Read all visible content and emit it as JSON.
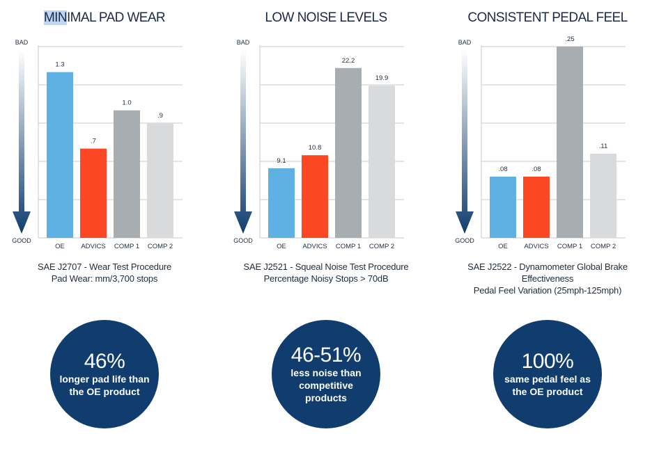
{
  "colors": {
    "oe": "#5fb0e3",
    "advics": "#fc4725",
    "comp1": "#a8adb2",
    "comp2": "#d9dadc",
    "grid": "#c8c8c8",
    "arrow_top": "#ffffff",
    "arrow_bottom": "#103d6e",
    "circle": "#103d6e"
  },
  "chart_data": [
    {
      "type": "bar",
      "title_highlight": "MIN",
      "title_rest": "IMAL PAD WEAR",
      "categories": [
        "OE",
        "ADVICS",
        "COMP 1",
        "COMP 2"
      ],
      "values": [
        1.3,
        0.7,
        1.0,
        0.9
      ],
      "value_labels": [
        "1.3",
        ".7",
        "1.0",
        ".9"
      ],
      "ylim": [
        0,
        1.5
      ],
      "grid_lines": 5,
      "axis_top": "BAD",
      "axis_bottom": "GOOD",
      "caption_lines": [
        "SAE J2707 - Wear Test Procedure",
        "Pad Wear: mm/3,700 stops"
      ],
      "stat_big": "46%",
      "stat_small": "longer pad life than the OE product"
    },
    {
      "type": "bar",
      "title_highlight": "",
      "title_rest": "LOW NOISE LEVELS",
      "categories": [
        "OE",
        "ADVICS",
        "COMP 1",
        "COMP 2"
      ],
      "values": [
        9.1,
        10.8,
        22.2,
        19.9
      ],
      "value_labels": [
        "9.1",
        "10.8",
        "22.2",
        "19.9"
      ],
      "ylim": [
        0,
        25
      ],
      "grid_lines": 5,
      "axis_top": "BAD",
      "axis_bottom": "GOOD",
      "caption_lines": [
        "SAE J2521 - Squeal Noise Test Procedure",
        "Percentage Noisy Stops > 70dB"
      ],
      "stat_big": "46-51%",
      "stat_small": "less noise than competitive products"
    },
    {
      "type": "bar",
      "title_highlight": "",
      "title_rest": "CONSISTENT PEDAL FEEL",
      "categories": [
        "OE",
        "ADVICS",
        "COMP 1",
        "COMP 2"
      ],
      "values": [
        0.08,
        0.08,
        0.25,
        0.11
      ],
      "value_labels": [
        ".08",
        ".08",
        ".25",
        ".11"
      ],
      "ylim": [
        0,
        0.25
      ],
      "grid_lines": 5,
      "axis_top": "BAD",
      "axis_bottom": "GOOD",
      "caption_lines": [
        "SAE J2522 - Dynamometer Global Brake",
        "Effectiveness",
        "Pedal Feel Variation (25mph-125mph)"
      ],
      "stat_big": "100%",
      "stat_small": "same pedal feel as the OE product"
    }
  ]
}
